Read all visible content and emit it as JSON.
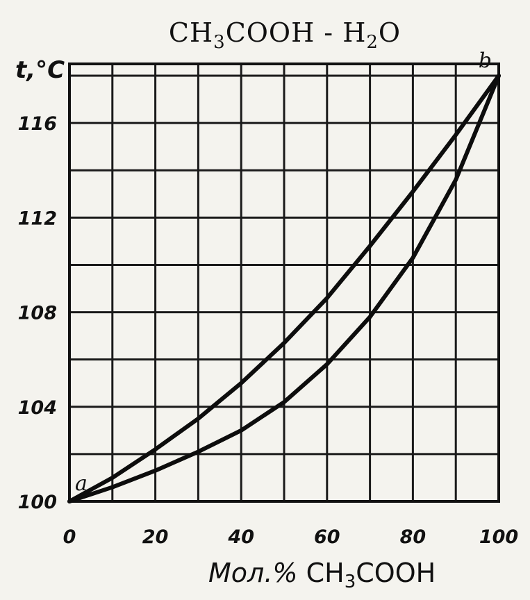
{
  "chart_data": {
    "type": "line",
    "title": {
      "prefix": "CH",
      "sub1": "3",
      "mid": "COOH - H",
      "sub2": "2",
      "suffix": "O"
    },
    "ylabel": "t,°C",
    "xlabel": {
      "prefix": "Мол.% ",
      "formula": "CH",
      "sub": "3",
      "suffix": "COOH"
    },
    "xlim": [
      0,
      100
    ],
    "ylim": [
      100,
      118.5
    ],
    "x_ticks": [
      "0",
      "20",
      "40",
      "60",
      "80",
      "100"
    ],
    "y_ticks": [
      "100",
      "104",
      "108",
      "112",
      "116"
    ],
    "grid": true,
    "point_labels": [
      {
        "text": "a",
        "x": 0,
        "y": 100
      },
      {
        "text": "b",
        "x": 100,
        "y": 118
      }
    ],
    "series": [
      {
        "x": [
          0,
          10,
          20,
          30,
          40,
          50,
          60,
          70,
          80,
          90,
          100
        ],
        "y": [
          100,
          101,
          102.2,
          103.5,
          105,
          106.7,
          108.6,
          110.8,
          113.1,
          115.5,
          118
        ]
      },
      {
        "x": [
          0,
          10,
          20,
          30,
          40,
          50,
          60,
          70,
          80,
          90,
          100
        ],
        "y": [
          100,
          100.6,
          101.3,
          102.1,
          103,
          104.2,
          105.8,
          107.8,
          110.3,
          113.6,
          118
        ]
      }
    ]
  }
}
